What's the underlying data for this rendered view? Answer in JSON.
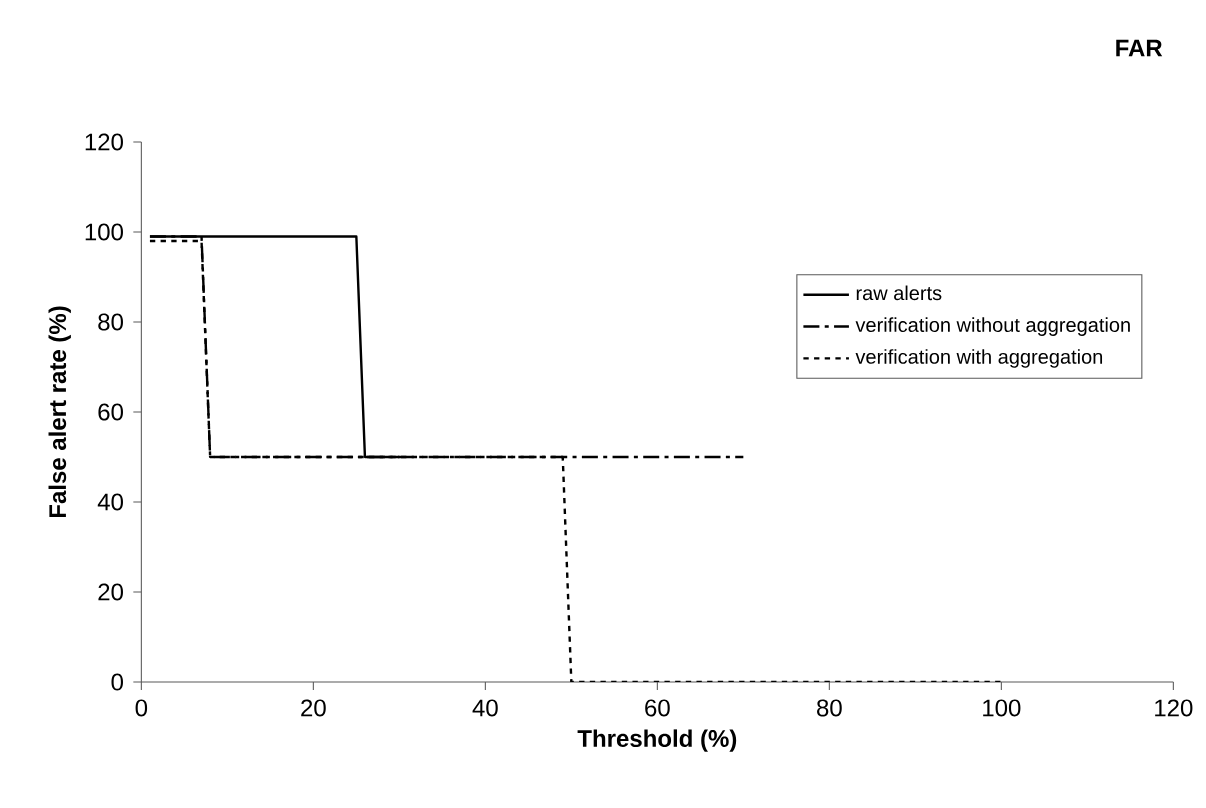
{
  "chart_data": {
    "type": "line",
    "title": "FAR",
    "xlabel": "Threshold (%)",
    "ylabel": "False alert rate (%)",
    "xlim": [
      0,
      120
    ],
    "xticks": [
      0,
      20,
      40,
      60,
      80,
      100,
      120
    ],
    "ylim": [
      0,
      120
    ],
    "yticks": [
      0,
      20,
      40,
      60,
      80,
      100,
      120
    ],
    "grid": false,
    "legend": "top right",
    "marker": "none",
    "series": [
      {
        "name": "raw alerts",
        "color": "#000000",
        "line_style": "solid",
        "x": [
          1,
          25,
          26,
          30
        ],
        "values": [
          99,
          99,
          50,
          50
        ]
      },
      {
        "name": "verification without aggregation",
        "color": "#000000",
        "line_style": "dashdot",
        "x": [
          1,
          7,
          8,
          70
        ],
        "values": [
          99,
          99,
          50,
          50
        ]
      },
      {
        "name": "verification with aggregation",
        "color": "#000000",
        "line_style": "dotted",
        "x": [
          1,
          7,
          8,
          49,
          50,
          100
        ],
        "values": [
          98,
          98,
          50,
          50,
          0,
          0
        ]
      }
    ]
  }
}
